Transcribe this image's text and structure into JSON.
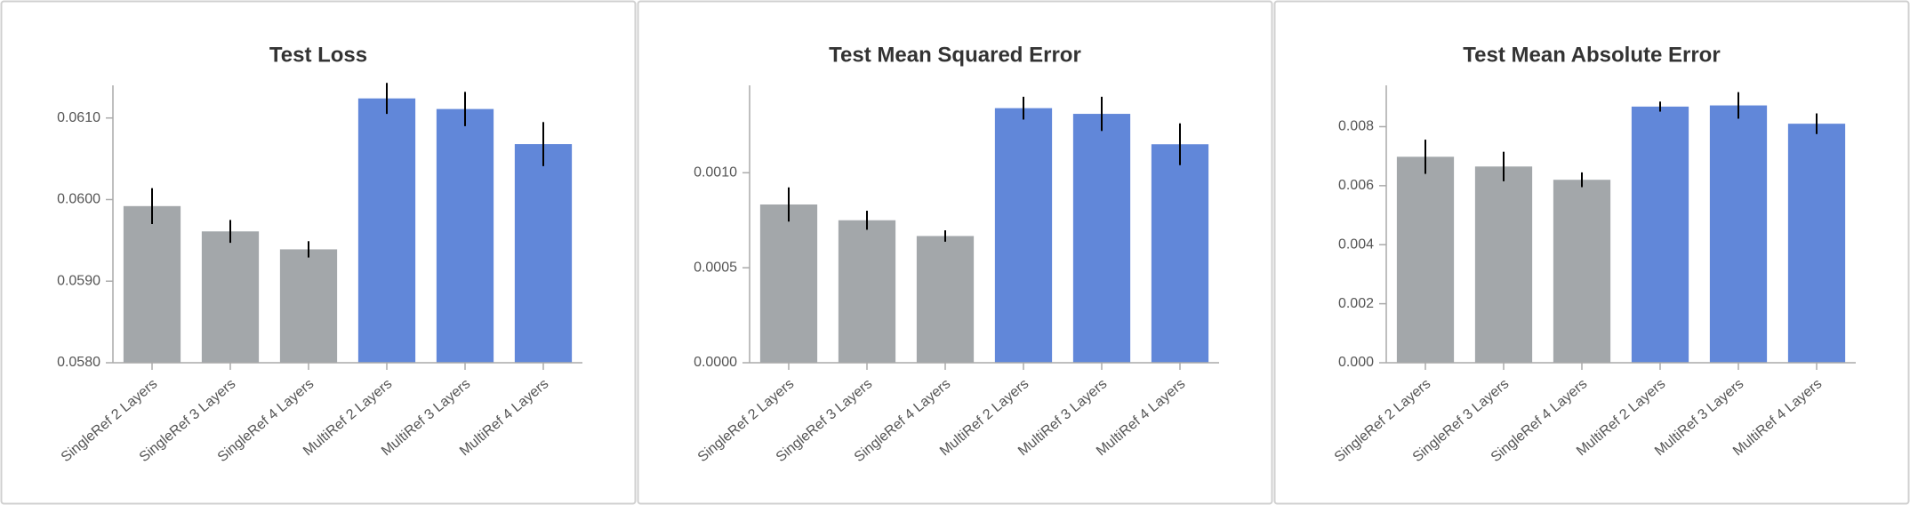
{
  "chart_data": [
    {
      "type": "bar",
      "title": "Test Loss",
      "categories": [
        "SingleRef 2 Layers",
        "SingleRef 3 Layers",
        "SingleRef 4 Layers",
        "MultiRef 2 Layers",
        "MultiRef 3 Layers",
        "MultiRef 4 Layers"
      ],
      "values": [
        0.05992,
        0.05961,
        0.05939,
        0.06124,
        0.06111,
        0.06068
      ],
      "errors": [
        0.00022,
        0.00014,
        0.0001,
        0.00019,
        0.00021,
        0.00027
      ],
      "colors": [
        "#a3a7aa",
        "#a3a7aa",
        "#a3a7aa",
        "#6187d9",
        "#6187d9",
        "#6187d9"
      ],
      "ylim": [
        0.058,
        0.0614
      ],
      "yticks": [
        {
          "value": 0.058,
          "label": "0.0580"
        },
        {
          "value": 0.059,
          "label": "0.0590"
        },
        {
          "value": 0.06,
          "label": "0.0600"
        },
        {
          "value": 0.061,
          "label": "0.0610"
        }
      ]
    },
    {
      "type": "bar",
      "title": "Test Mean Squared Error",
      "categories": [
        "SingleRef 2 Layers",
        "SingleRef 3 Layers",
        "SingleRef 4 Layers",
        "MultiRef 2 Layers",
        "MultiRef 3 Layers",
        "MultiRef 4 Layers"
      ],
      "values": [
        0.000833,
        0.00075,
        0.000667,
        0.00134,
        0.00131,
        0.00115
      ],
      "errors": [
        9e-05,
        5e-05,
        3e-05,
        6e-05,
        9e-05,
        0.00011
      ],
      "colors": [
        "#a3a7aa",
        "#a3a7aa",
        "#a3a7aa",
        "#6187d9",
        "#6187d9",
        "#6187d9"
      ],
      "ylim": [
        0,
        0.00146
      ],
      "yticks": [
        {
          "value": 0,
          "label": "0.0000"
        },
        {
          "value": 0.0005,
          "label": "0.0005"
        },
        {
          "value": 0.001,
          "label": "0.0010"
        }
      ]
    },
    {
      "type": "bar",
      "title": "Test Mean Absolute Error",
      "categories": [
        "SingleRef 2 Layers",
        "SingleRef 3 Layers",
        "SingleRef 4 Layers",
        "MultiRef 2 Layers",
        "MultiRef 3 Layers",
        "MultiRef 4 Layers"
      ],
      "values": [
        0.00698,
        0.00665,
        0.0062,
        0.00868,
        0.00872,
        0.0081
      ],
      "errors": [
        0.00058,
        0.0005,
        0.00025,
        0.00017,
        0.00045,
        0.00035
      ],
      "colors": [
        "#a3a7aa",
        "#a3a7aa",
        "#a3a7aa",
        "#6187d9",
        "#6187d9",
        "#6187d9"
      ],
      "ylim": [
        0,
        0.0094
      ],
      "yticks": [
        {
          "value": 0,
          "label": "0.000"
        },
        {
          "value": 0.002,
          "label": "0.002"
        },
        {
          "value": 0.004,
          "label": "0.004"
        },
        {
          "value": 0.006,
          "label": "0.006"
        },
        {
          "value": 0.008,
          "label": "0.008"
        }
      ]
    }
  ]
}
